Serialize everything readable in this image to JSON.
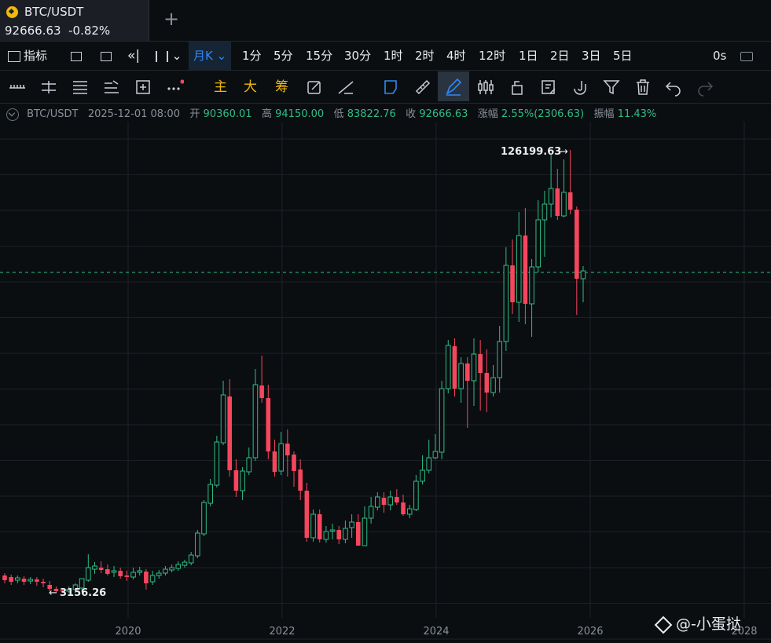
{
  "tab": {
    "symbol": "BTC/USDT",
    "price": "92666.63",
    "change": "-0.82%"
  },
  "toolbar": {
    "indicators": "指标",
    "active_interval": "月K",
    "intervals": [
      "1分",
      "5分",
      "15分",
      "30分",
      "1时",
      "2时",
      "4时",
      "12时",
      "1日",
      "2日",
      "3日",
      "5日"
    ],
    "timer": "0s"
  },
  "drawbar": {
    "main": "主",
    "big": "大",
    "chip": "筹"
  },
  "info": {
    "symbol": "BTC/USDT",
    "datetime": "2025-12-01 08:00",
    "open_label": "开",
    "open": "90360.01",
    "high_label": "高",
    "high": "94150.00",
    "low_label": "低",
    "low": "83822.76",
    "close_label": "收",
    "close": "92666.63",
    "change_label": "涨幅",
    "change": "2.55%(2306.63)",
    "amp_label": "振幅",
    "amp": "11.43%"
  },
  "chart_data": {
    "type": "candlestick",
    "interval": "monthly",
    "up_color": "#2ebd85",
    "down_color": "#f6465d",
    "x_ticks": [
      "2020",
      "2022",
      "2024",
      "2026",
      "2028"
    ],
    "max_label": "126199.63",
    "min_label": "3156.26",
    "current_price_line": 92666.63
  },
  "watermark": "@-小蛋挞"
}
